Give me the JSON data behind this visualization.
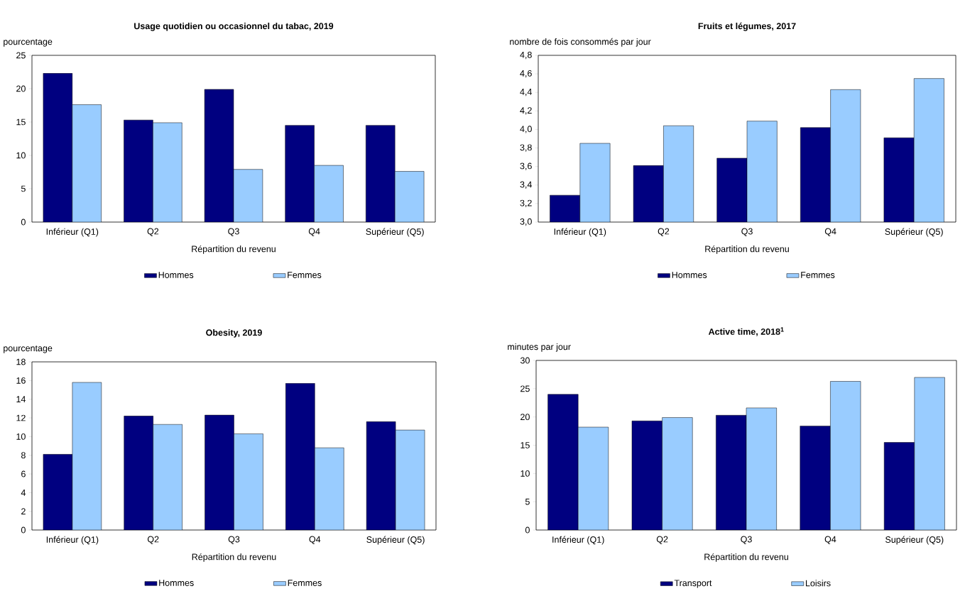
{
  "chart_data": [
    {
      "type": "bar",
      "title": "Usage quotidien ou occasionnel du tabac, 2019",
      "ylabel": "pourcentage",
      "xlabel": "Répartition du revenu",
      "categories": [
        "Inférieur (Q1)",
        "Q2",
        "Q3",
        "Q4",
        "Supérieur (Q5)"
      ],
      "ylim": [
        0,
        25
      ],
      "yticks": [
        0,
        5,
        10,
        15,
        20,
        25
      ],
      "legend": "bottom",
      "series": [
        {
          "name": "Hommes",
          "color": "#000080",
          "values": [
            22.3,
            15.3,
            19.9,
            14.5,
            14.5
          ]
        },
        {
          "name": "Femmes",
          "color": "#99ccff",
          "values": [
            17.6,
            14.9,
            7.9,
            8.5,
            7.6
          ]
        }
      ]
    },
    {
      "type": "bar",
      "title": "Fruits et légumes, 2017",
      "ylabel": "nombre de fois consommés par jour",
      "xlabel": "Répartition du revenu",
      "categories": [
        "Inférieur (Q1)",
        "Q2",
        "Q3",
        "Q4",
        "Supérieur (Q5)"
      ],
      "ylim": [
        3.0,
        4.8
      ],
      "yticks": [
        {
          "value": 3.0,
          "label": "3,0"
        },
        {
          "value": 3.2,
          "label": "3,2"
        },
        {
          "value": 3.4,
          "label": "3,4"
        },
        {
          "value": 3.6,
          "label": "3,6"
        },
        {
          "value": 3.8,
          "label": "3,8"
        },
        {
          "value": 4.0,
          "label": "4,0"
        },
        {
          "value": 4.2,
          "label": "4,2"
        },
        {
          "value": 4.4,
          "label": "4,4"
        },
        {
          "value": 4.6,
          "label": "4,6"
        },
        {
          "value": 4.8,
          "label": "4,8"
        }
      ],
      "legend": "bottom",
      "series": [
        {
          "name": "Hommes",
          "color": "#000080",
          "values": [
            3.29,
            3.61,
            3.69,
            4.02,
            3.91
          ]
        },
        {
          "name": "Femmes",
          "color": "#99ccff",
          "values": [
            3.85,
            4.04,
            4.09,
            4.43,
            4.55
          ]
        }
      ]
    },
    {
      "type": "bar",
      "title": "Obesity, 2019",
      "ylabel": "pourcentage",
      "xlabel": "Répartition du revenu",
      "categories": [
        "Inférieur (Q1)",
        "Q2",
        "Q3",
        "Q4",
        "Supérieur (Q5)"
      ],
      "ylim": [
        0,
        18
      ],
      "yticks": [
        0,
        2,
        4,
        6,
        8,
        10,
        12,
        14,
        16,
        18
      ],
      "legend": "bottom",
      "series": [
        {
          "name": "Hommes",
          "color": "#000080",
          "values": [
            8.1,
            12.2,
            12.3,
            15.7,
            11.6
          ]
        },
        {
          "name": "Femmes",
          "color": "#99ccff",
          "values": [
            15.8,
            11.3,
            10.3,
            8.8,
            10.7
          ]
        }
      ]
    },
    {
      "type": "bar",
      "title": "Active time, 2018$^{1}$",
      "ylabel": "minutes par jour",
      "xlabel": "Répartition du revenu",
      "categories": [
        "Inférieur (Q1)",
        "Q2",
        "Q3",
        "Q4",
        "Supérieur (Q5)"
      ],
      "ylim": [
        0,
        30
      ],
      "yticks": [
        0,
        5,
        10,
        15,
        20,
        25,
        30
      ],
      "legend": "bottom",
      "series": [
        {
          "name": "Transport",
          "color": "#000080",
          "values": [
            24.0,
            19.3,
            20.3,
            18.4,
            15.5
          ]
        },
        {
          "name": "Loisirs",
          "color": "#99ccff",
          "values": [
            18.2,
            19.9,
            21.6,
            26.3,
            27.0
          ]
        }
      ]
    }
  ]
}
